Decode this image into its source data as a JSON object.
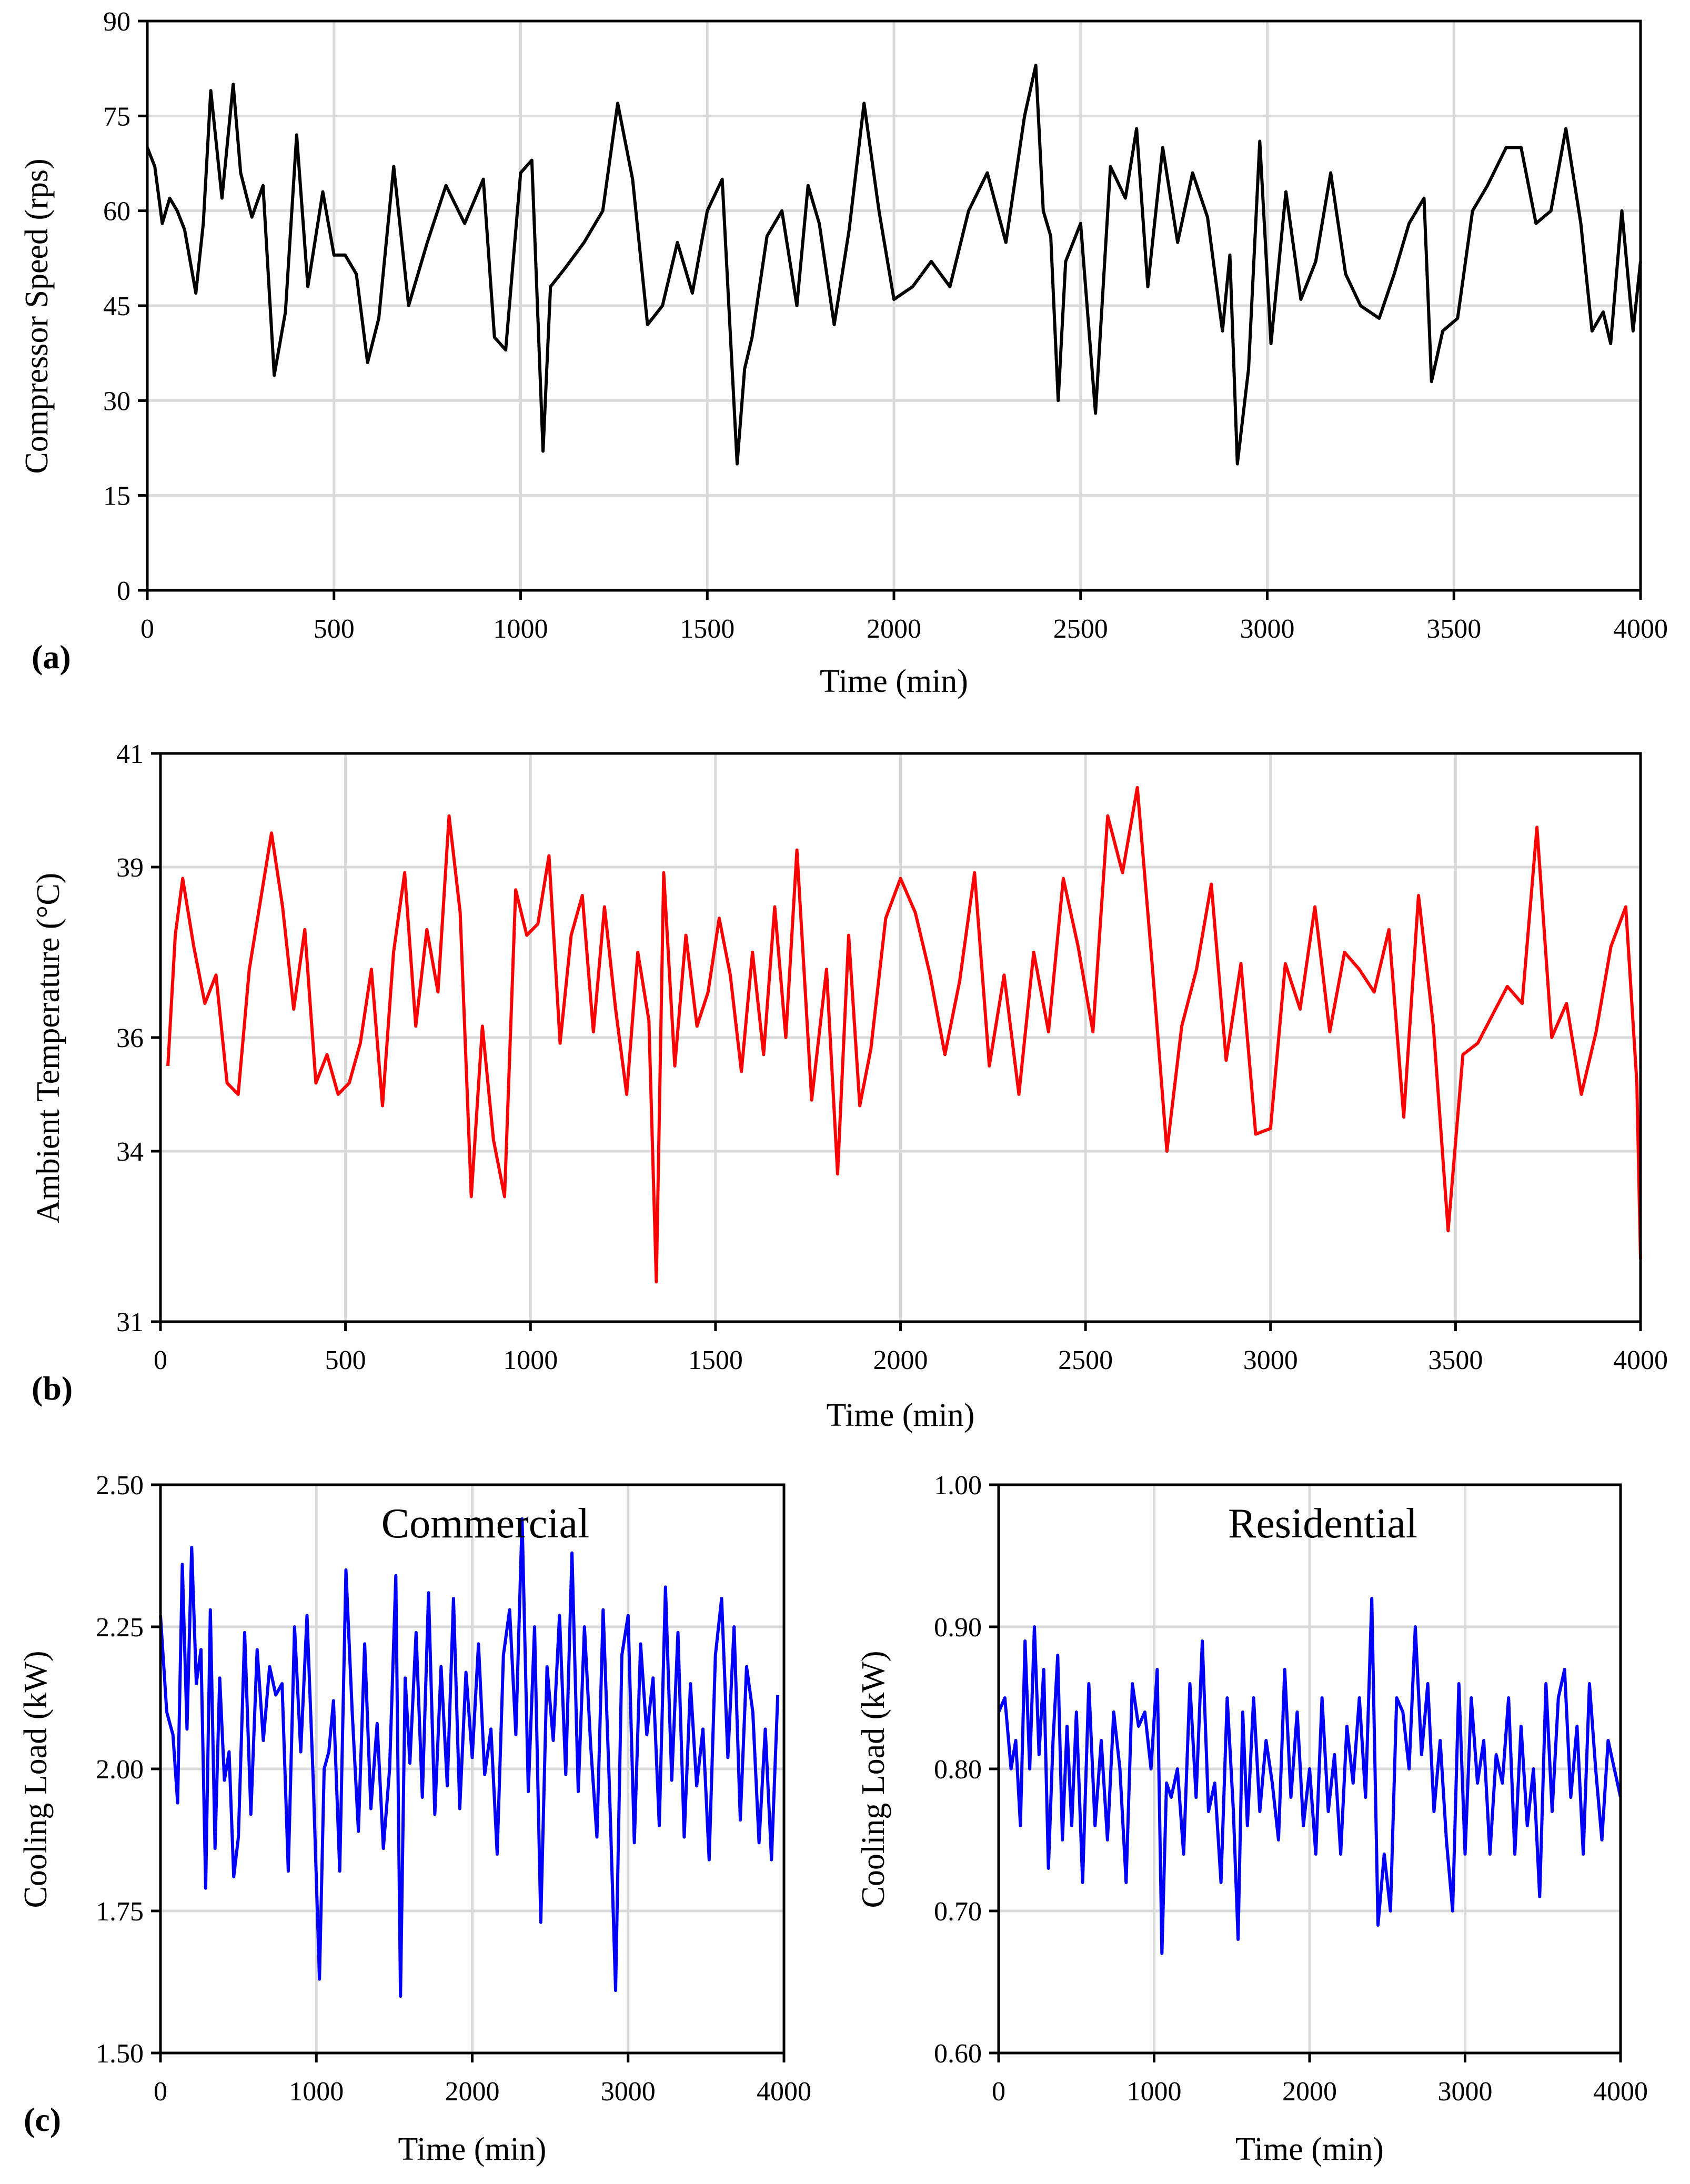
{
  "chart_data": [
    {
      "id": "a",
      "panel_label": "(a)",
      "type": "line",
      "color": "#000000",
      "xlabel": "Time (min)",
      "ylabel": "Compressor Speed (rps)",
      "xlim": [
        0,
        4000
      ],
      "ylim": [
        0,
        90
      ],
      "xticks": [
        "0",
        "500",
        "1000",
        "1500",
        "2000",
        "2500",
        "3000",
        "3500",
        "4000"
      ],
      "yticks": [
        "0",
        "15",
        "30",
        "45",
        "60",
        "75",
        "90"
      ],
      "grid": true,
      "x": [
        0,
        20,
        40,
        60,
        80,
        100,
        130,
        150,
        170,
        200,
        230,
        250,
        280,
        310,
        340,
        370,
        400,
        430,
        470,
        500,
        530,
        560,
        590,
        620,
        660,
        700,
        750,
        800,
        850,
        900,
        930,
        960,
        1000,
        1030,
        1060,
        1080,
        1120,
        1170,
        1220,
        1260,
        1300,
        1340,
        1380,
        1420,
        1460,
        1500,
        1540,
        1580,
        1600,
        1620,
        1660,
        1700,
        1740,
        1770,
        1800,
        1840,
        1880,
        1920,
        1960,
        2000,
        2050,
        2100,
        2150,
        2200,
        2250,
        2300,
        2350,
        2380,
        2400,
        2420,
        2440,
        2460,
        2500,
        2540,
        2580,
        2620,
        2650,
        2680,
        2720,
        2760,
        2800,
        2840,
        2880,
        2900,
        2920,
        2950,
        2980,
        3010,
        3050,
        3090,
        3130,
        3170,
        3210,
        3250,
        3300,
        3340,
        3380,
        3420,
        3440,
        3470,
        3510,
        3550,
        3590,
        3640,
        3680,
        3720,
        3760,
        3800,
        3840,
        3870,
        3900,
        3920,
        3950,
        3980,
        4000
      ],
      "y": [
        70,
        67,
        58,
        62,
        60,
        57,
        47,
        58,
        79,
        62,
        80,
        66,
        59,
        64,
        34,
        44,
        72,
        48,
        63,
        53,
        53,
        50,
        36,
        43,
        67,
        45,
        55,
        64,
        58,
        65,
        40,
        38,
        66,
        68,
        22,
        48,
        51,
        55,
        60,
        77,
        65,
        42,
        45,
        55,
        47,
        60,
        65,
        20,
        35,
        40,
        56,
        60,
        45,
        64,
        58,
        42,
        57,
        77,
        60,
        46,
        48,
        52,
        48,
        60,
        66,
        55,
        75,
        83,
        60,
        56,
        30,
        52,
        58,
        28,
        67,
        62,
        73,
        48,
        70,
        55,
        66,
        59,
        41,
        53,
        20,
        35,
        71,
        39,
        63,
        46,
        52,
        66,
        50,
        45,
        43,
        50,
        58,
        62,
        33,
        41,
        43,
        60,
        64,
        70,
        70,
        58,
        60,
        73,
        58,
        41,
        44,
        39,
        60,
        41,
        52
      ]
    },
    {
      "id": "b",
      "panel_label": "(b)",
      "type": "line",
      "color": "#ff0000",
      "xlabel": "Time (min)",
      "ylabel": "Ambient Temperature (°C)",
      "xlim": [
        0,
        4000
      ],
      "ylim": [
        31,
        41
      ],
      "xticks": [
        "0",
        "500",
        "1000",
        "1500",
        "2000",
        "2500",
        "3000",
        "3500",
        "4000"
      ],
      "ytick_values": [
        31,
        34,
        36,
        39,
        41
      ],
      "yticks": [
        "31",
        "34",
        "36",
        "39",
        "41"
      ],
      "grid": true,
      "x": [
        20,
        40,
        60,
        90,
        120,
        150,
        180,
        210,
        240,
        270,
        300,
        330,
        360,
        390,
        420,
        450,
        480,
        510,
        540,
        570,
        600,
        630,
        660,
        690,
        720,
        750,
        780,
        810,
        840,
        870,
        900,
        930,
        960,
        990,
        1020,
        1050,
        1080,
        1110,
        1140,
        1170,
        1200,
        1230,
        1260,
        1290,
        1320,
        1340,
        1360,
        1390,
        1420,
        1450,
        1480,
        1510,
        1540,
        1570,
        1600,
        1630,
        1660,
        1690,
        1720,
        1760,
        1800,
        1830,
        1860,
        1890,
        1920,
        1960,
        2000,
        2040,
        2080,
        2120,
        2160,
        2200,
        2240,
        2280,
        2320,
        2360,
        2400,
        2440,
        2480,
        2520,
        2560,
        2600,
        2640,
        2680,
        2720,
        2760,
        2800,
        2840,
        2880,
        2920,
        2960,
        3000,
        3040,
        3080,
        3120,
        3160,
        3200,
        3240,
        3280,
        3320,
        3360,
        3400,
        3440,
        3480,
        3520,
        3560,
        3600,
        3640,
        3680,
        3720,
        3760,
        3800,
        3840,
        3880,
        3920,
        3960,
        3990,
        4000
      ],
      "y": [
        35.5,
        37.8,
        38.8,
        37.6,
        36.6,
        37.1,
        35.2,
        35.0,
        37.2,
        38.4,
        39.6,
        38.3,
        36.5,
        37.9,
        35.2,
        35.7,
        35.0,
        35.2,
        35.9,
        37.2,
        34.8,
        37.5,
        38.9,
        36.2,
        37.9,
        36.8,
        39.9,
        38.2,
        33.2,
        36.2,
        34.2,
        33.2,
        38.6,
        37.8,
        38.0,
        39.2,
        35.9,
        37.8,
        38.5,
        36.1,
        38.3,
        36.5,
        35.0,
        37.5,
        36.3,
        31.7,
        38.9,
        35.5,
        37.8,
        36.2,
        36.8,
        38.1,
        37.1,
        35.4,
        37.5,
        35.7,
        38.3,
        36.0,
        39.3,
        34.9,
        37.2,
        33.6,
        37.8,
        34.8,
        35.8,
        38.1,
        38.8,
        38.2,
        37.1,
        35.7,
        37.0,
        38.9,
        35.5,
        37.1,
        35.0,
        37.5,
        36.1,
        38.8,
        37.6,
        36.1,
        39.9,
        38.9,
        40.4,
        37.3,
        34.0,
        36.2,
        37.2,
        38.7,
        35.6,
        37.3,
        34.3,
        34.4,
        37.3,
        36.5,
        38.3,
        36.1,
        37.5,
        37.2,
        36.8,
        37.9,
        34.6,
        38.5,
        36.2,
        32.6,
        35.7,
        35.9,
        36.4,
        36.9,
        36.6,
        39.7,
        36.0,
        36.6,
        35.0,
        36.1,
        37.6,
        38.3,
        35.2,
        32.1
      ]
    },
    {
      "id": "c1",
      "panel_label": "(c)",
      "type": "line",
      "color": "#0000ff",
      "title": "Commercial",
      "xlabel": "Time (min)",
      "ylabel": "Cooling Load (kW)",
      "xlim": [
        0,
        4000
      ],
      "ylim": [
        1.5,
        2.5
      ],
      "xticks": [
        "0",
        "1000",
        "2000",
        "3000",
        "4000"
      ],
      "yticks": [
        "1.50",
        "1.75",
        "2.00",
        "2.25",
        "2.50"
      ],
      "grid": true,
      "x": [
        0,
        40,
        80,
        110,
        140,
        170,
        200,
        230,
        260,
        290,
        320,
        350,
        380,
        410,
        440,
        470,
        500,
        540,
        580,
        620,
        660,
        700,
        740,
        780,
        820,
        860,
        900,
        940,
        980,
        1020,
        1050,
        1080,
        1110,
        1150,
        1190,
        1230,
        1270,
        1310,
        1350,
        1390,
        1430,
        1470,
        1510,
        1540,
        1570,
        1600,
        1640,
        1680,
        1720,
        1760,
        1800,
        1840,
        1880,
        1920,
        1960,
        2000,
        2040,
        2080,
        2120,
        2160,
        2200,
        2240,
        2280,
        2320,
        2360,
        2400,
        2440,
        2480,
        2520,
        2560,
        2600,
        2640,
        2680,
        2720,
        2760,
        2800,
        2840,
        2880,
        2920,
        2960,
        3000,
        3040,
        3080,
        3120,
        3160,
        3200,
        3240,
        3280,
        3320,
        3360,
        3400,
        3440,
        3480,
        3520,
        3560,
        3600,
        3640,
        3680,
        3720,
        3760,
        3800,
        3840,
        3880,
        3920,
        3960
      ],
      "y": [
        2.27,
        2.1,
        2.06,
        1.94,
        2.36,
        2.07,
        2.39,
        2.15,
        2.21,
        1.79,
        2.28,
        1.86,
        2.16,
        1.98,
        2.03,
        1.81,
        1.88,
        2.24,
        1.92,
        2.21,
        2.05,
        2.18,
        2.13,
        2.15,
        1.82,
        2.25,
        2.03,
        2.27,
        1.98,
        1.63,
        2.0,
        2.03,
        2.12,
        1.82,
        2.35,
        2.1,
        1.89,
        2.22,
        1.93,
        2.08,
        1.86,
        2.0,
        2.34,
        1.6,
        2.16,
        2.01,
        2.24,
        1.95,
        2.31,
        1.92,
        2.18,
        1.97,
        2.3,
        1.93,
        2.17,
        2.02,
        2.22,
        1.99,
        2.07,
        1.85,
        2.2,
        2.28,
        2.06,
        2.44,
        1.96,
        2.25,
        1.73,
        2.18,
        2.05,
        2.27,
        1.99,
        2.38,
        1.96,
        2.25,
        2.04,
        1.88,
        2.28,
        1.97,
        1.61,
        2.2,
        2.27,
        1.87,
        2.22,
        2.06,
        2.16,
        1.9,
        2.32,
        1.98,
        2.24,
        1.88,
        2.15,
        1.97,
        2.07,
        1.84,
        2.2,
        2.3,
        2.02,
        2.25,
        1.91,
        2.18,
        2.1,
        1.87,
        2.07,
        1.84,
        2.13
      ]
    },
    {
      "id": "c2",
      "type": "line",
      "color": "#0000ff",
      "title": "Residential",
      "xlabel": "Time (min)",
      "ylabel": "Cooling Load (kW)",
      "xlim": [
        0,
        4000
      ],
      "ylim": [
        0.6,
        1.0
      ],
      "xticks": [
        "0",
        "1000",
        "2000",
        "3000",
        "4000"
      ],
      "yticks": [
        "0.60",
        "0.70",
        "0.80",
        "0.90",
        "1.00"
      ],
      "grid": true,
      "x": [
        0,
        40,
        80,
        110,
        140,
        170,
        200,
        230,
        260,
        290,
        320,
        350,
        380,
        410,
        440,
        470,
        500,
        540,
        580,
        620,
        660,
        700,
        740,
        780,
        820,
        860,
        900,
        940,
        980,
        1020,
        1050,
        1080,
        1110,
        1150,
        1190,
        1230,
        1270,
        1310,
        1350,
        1390,
        1430,
        1470,
        1510,
        1540,
        1570,
        1600,
        1640,
        1680,
        1720,
        1760,
        1800,
        1840,
        1880,
        1920,
        1960,
        2000,
        2040,
        2080,
        2120,
        2160,
        2200,
        2240,
        2280,
        2320,
        2360,
        2400,
        2440,
        2480,
        2520,
        2560,
        2600,
        2640,
        2680,
        2720,
        2760,
        2800,
        2840,
        2880,
        2920,
        2960,
        3000,
        3040,
        3080,
        3120,
        3160,
        3200,
        3240,
        3280,
        3320,
        3360,
        3400,
        3440,
        3480,
        3520,
        3560,
        3600,
        3640,
        3680,
        3720,
        3760,
        3800,
        3840,
        3880,
        3920,
        3960,
        4000
      ],
      "y": [
        0.84,
        0.85,
        0.8,
        0.82,
        0.76,
        0.89,
        0.8,
        0.9,
        0.81,
        0.87,
        0.73,
        0.82,
        0.88,
        0.75,
        0.83,
        0.76,
        0.84,
        0.72,
        0.86,
        0.76,
        0.82,
        0.75,
        0.84,
        0.8,
        0.72,
        0.86,
        0.83,
        0.84,
        0.8,
        0.87,
        0.67,
        0.79,
        0.78,
        0.8,
        0.74,
        0.86,
        0.78,
        0.89,
        0.77,
        0.79,
        0.72,
        0.85,
        0.77,
        0.68,
        0.84,
        0.76,
        0.85,
        0.77,
        0.82,
        0.79,
        0.75,
        0.87,
        0.78,
        0.84,
        0.76,
        0.8,
        0.74,
        0.85,
        0.77,
        0.81,
        0.74,
        0.83,
        0.79,
        0.85,
        0.78,
        0.92,
        0.69,
        0.74,
        0.7,
        0.85,
        0.84,
        0.8,
        0.9,
        0.81,
        0.86,
        0.77,
        0.82,
        0.75,
        0.7,
        0.86,
        0.74,
        0.85,
        0.79,
        0.82,
        0.74,
        0.81,
        0.79,
        0.85,
        0.74,
        0.83,
        0.76,
        0.8,
        0.71,
        0.86,
        0.77,
        0.85,
        0.87,
        0.78,
        0.83,
        0.74,
        0.86,
        0.8,
        0.75,
        0.82,
        0.8,
        0.78
      ]
    }
  ]
}
